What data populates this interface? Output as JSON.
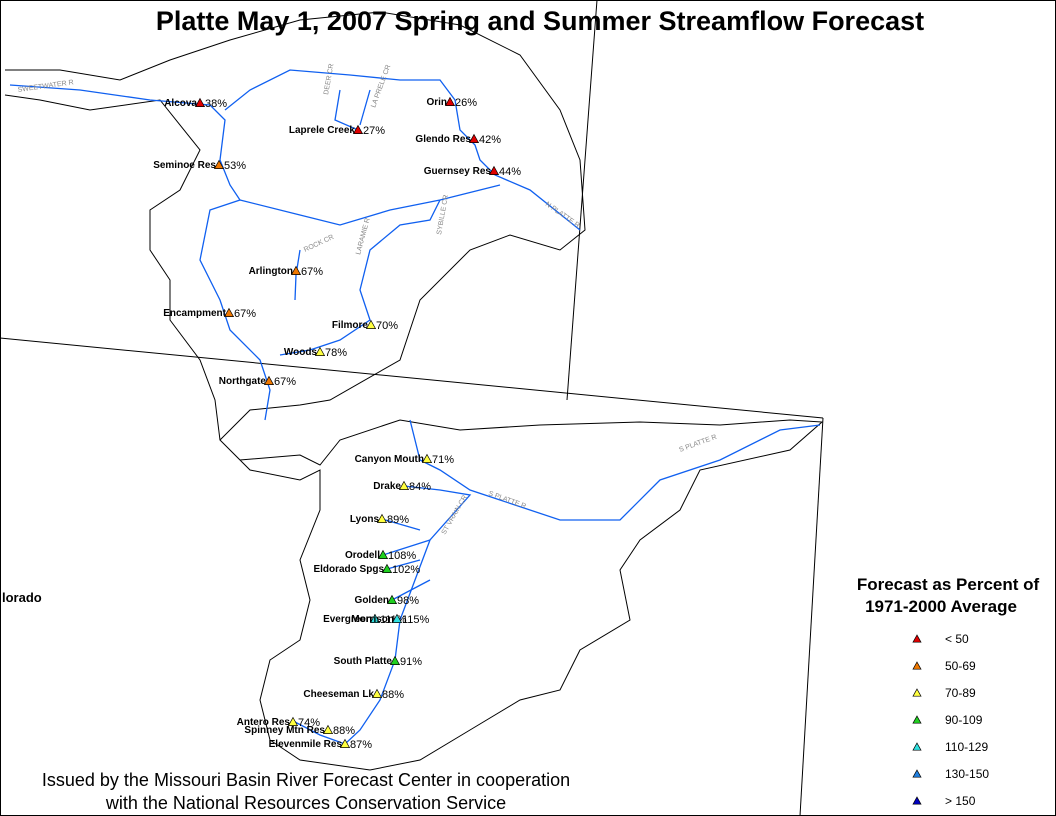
{
  "title": "Platte May 1, 2007 Spring and Summer Streamflow Forecast",
  "footer": [
    "Issued by the Missouri Basin River Forecast Center in cooperation",
    "with the National Resources Conservation Service"
  ],
  "state_label": "lorado",
  "legend": {
    "title": [
      "Forecast as Percent of",
      "1971-2000 Average"
    ],
    "classes": [
      {
        "label": "< 50",
        "color": "#e00000"
      },
      {
        "label": "50-69",
        "color": "#f07800"
      },
      {
        "label": "70-89",
        "color": "#ffff40"
      },
      {
        "label": "90-109",
        "color": "#20d020"
      },
      {
        "label": "110-129",
        "color": "#30e0e0"
      },
      {
        "label": "130-150",
        "color": "#2080e0"
      },
      {
        "label": "> 150",
        "color": "#0000c0"
      }
    ]
  },
  "rivers": [
    "SWEETWATER R",
    "DEER CR",
    "LA PRELE CR",
    "ROCK CR",
    "LARAMIE R",
    "SYBILLE CR",
    "N PLATTE R",
    "S PLATTE R",
    "S PLATTE R",
    "ST VRAIN CR"
  ],
  "stations": [
    {
      "name": "Alcova",
      "percent": "38%",
      "class": 0
    },
    {
      "name": "Orin",
      "percent": "26%",
      "class": 0
    },
    {
      "name": "Laprele Creek",
      "percent": "27%",
      "class": 0
    },
    {
      "name": "Glendo Res",
      "percent": "42%",
      "class": 0
    },
    {
      "name": "Seminoe Res",
      "percent": "53%",
      "class": 1
    },
    {
      "name": "Guernsey Res",
      "percent": "44%",
      "class": 0
    },
    {
      "name": "Arlington",
      "percent": "67%",
      "class": 1
    },
    {
      "name": "Encampment",
      "percent": "67%",
      "class": 1
    },
    {
      "name": "Filmore",
      "percent": "70%",
      "class": 2
    },
    {
      "name": "Woods",
      "percent": "78%",
      "class": 2
    },
    {
      "name": "Northgate",
      "percent": "67%",
      "class": 1
    },
    {
      "name": "Canyon Mouth",
      "percent": "71%",
      "class": 2
    },
    {
      "name": "Drake",
      "percent": "84%",
      "class": 2
    },
    {
      "name": "Lyons",
      "percent": "89%",
      "class": 2
    },
    {
      "name": "Orodell",
      "percent": "108%",
      "class": 3
    },
    {
      "name": "Eldorado Spgs",
      "percent": "102%",
      "class": 3
    },
    {
      "name": "Golden",
      "percent": "98%",
      "class": 3
    },
    {
      "name": "Evergreen",
      "percent": "111%",
      "class": 4
    },
    {
      "name": "Morrison",
      "percent": "115%",
      "class": 4
    },
    {
      "name": "South Platte",
      "percent": "91%",
      "class": 3
    },
    {
      "name": "Cheeseman Lk",
      "percent": "88%",
      "class": 2
    },
    {
      "name": "Antero Res",
      "percent": "74%",
      "class": 2
    },
    {
      "name": "Spinney Mtn Res",
      "percent": "88%",
      "class": 2
    },
    {
      "name": "Elevenmile Res",
      "percent": "87%",
      "class": 2
    }
  ]
}
